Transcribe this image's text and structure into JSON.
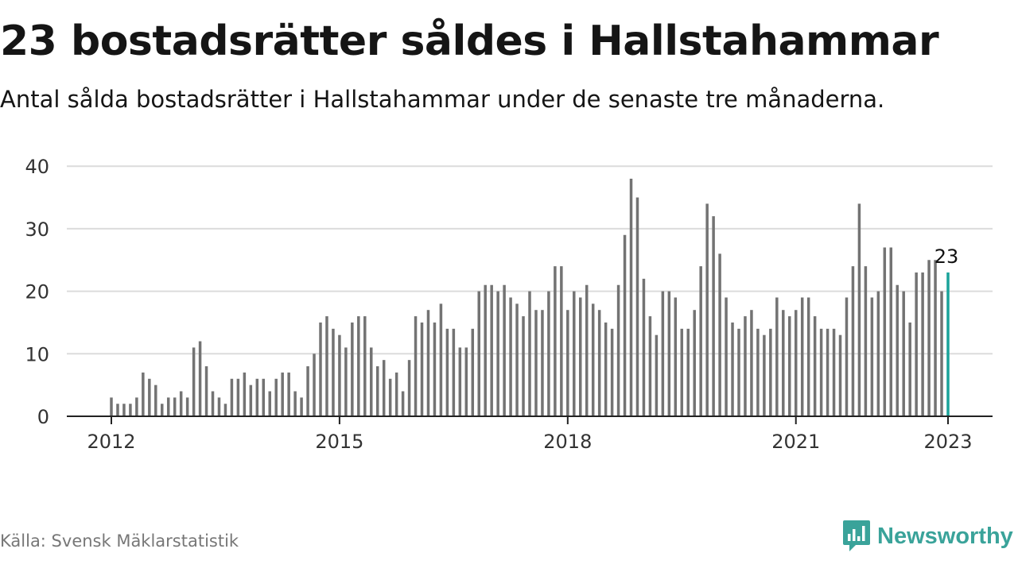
{
  "header": {
    "title": "23 bostadsrätter såldes i Hallstahammar",
    "subtitle": "Antal sålda bostadsrätter i Hallstahammar under de senaste tre månaderna."
  },
  "footer": {
    "source": "Källa: Svensk Mäklarstatistik",
    "brand": "Newsworthy",
    "logo_icon": "newsworthy-chart-bubble-icon"
  },
  "colors": {
    "bar": "#737373",
    "highlight": "#1aa39a",
    "grid": "#dcdcdc",
    "axis": "#222222",
    "brand": "#3aa39a"
  },
  "chart_data": {
    "type": "bar",
    "title": "23 bostadsrätter såldes i Hallstahammar",
    "subtitle": "Antal sålda bostadsrätter i Hallstahammar under de senaste tre månaderna.",
    "x_start": "2012-01",
    "x_end": "2023-01",
    "x_tick_labels": [
      "2012",
      "2015",
      "2018",
      "2021",
      "2023"
    ],
    "y_ticks": [
      0,
      10,
      20,
      30,
      40
    ],
    "ylim": [
      0,
      40
    ],
    "grid": true,
    "highlight_last": true,
    "highlight_label": "23",
    "values": [
      3,
      2,
      2,
      2,
      3,
      7,
      6,
      5,
      2,
      3,
      3,
      4,
      3,
      11,
      12,
      8,
      4,
      3,
      2,
      6,
      6,
      7,
      5,
      6,
      6,
      4,
      6,
      7,
      7,
      4,
      3,
      8,
      10,
      15,
      16,
      14,
      13,
      11,
      15,
      16,
      16,
      11,
      8,
      9,
      6,
      7,
      4,
      9,
      16,
      15,
      17,
      15,
      18,
      14,
      14,
      11,
      11,
      14,
      20,
      21,
      21,
      20,
      21,
      19,
      18,
      16,
      20,
      17,
      17,
      20,
      24,
      24,
      17,
      20,
      19,
      21,
      18,
      17,
      15,
      14,
      21,
      29,
      38,
      35,
      22,
      16,
      13,
      20,
      20,
      19,
      14,
      14,
      17,
      24,
      34,
      32,
      26,
      19,
      15,
      14,
      16,
      17,
      14,
      13,
      14,
      19,
      17,
      16,
      17,
      19,
      19,
      16,
      14,
      14,
      14,
      13,
      19,
      24,
      34,
      24,
      19,
      20,
      27,
      27,
      21,
      20,
      15,
      23,
      23,
      25,
      25,
      20,
      23
    ]
  }
}
